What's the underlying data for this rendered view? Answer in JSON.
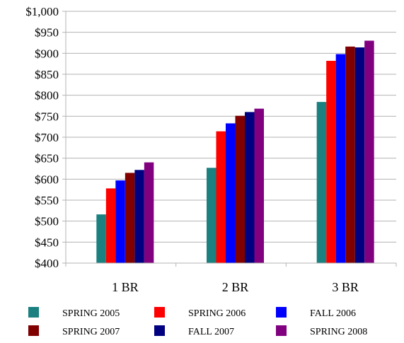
{
  "chart_data": {
    "type": "bar",
    "title": "",
    "xlabel": "",
    "ylabel": "",
    "categories": [
      "1 BR",
      "2 BR",
      "3 BR"
    ],
    "ylim": [
      400,
      1000
    ],
    "yticks": [
      {
        "value": 400,
        "label": "$400"
      },
      {
        "value": 450,
        "label": "$450"
      },
      {
        "value": 500,
        "label": "$500"
      },
      {
        "value": 550,
        "label": "$550"
      },
      {
        "value": 600,
        "label": "$600"
      },
      {
        "value": 650,
        "label": "$650"
      },
      {
        "value": 700,
        "label": "$700"
      },
      {
        "value": 750,
        "label": "$750"
      },
      {
        "value": 800,
        "label": "$800"
      },
      {
        "value": 850,
        "label": "$850"
      },
      {
        "value": 900,
        "label": "$900"
      },
      {
        "value": 950,
        "label": "$950"
      },
      {
        "value": 1000,
        "label": "$1,000"
      }
    ],
    "grid": true,
    "legend_position": "bottom",
    "series": [
      {
        "name": "SPRING 2005",
        "color": "#1a8080",
        "values": [
          516,
          627,
          784
        ]
      },
      {
        "name": "SPRING 2006",
        "color": "#ff0000",
        "values": [
          578,
          714,
          882
        ]
      },
      {
        "name": "FALL 2006",
        "color": "#0000ff",
        "values": [
          597,
          733,
          898
        ]
      },
      {
        "name": "SPRING 2007",
        "color": "#800000",
        "values": [
          615,
          751,
          916
        ]
      },
      {
        "name": "FALL 2007",
        "color": "#000080",
        "values": [
          622,
          760,
          914
        ]
      },
      {
        "name": "SPRING 2008",
        "color": "#800080",
        "values": [
          640,
          768,
          930
        ]
      }
    ]
  }
}
